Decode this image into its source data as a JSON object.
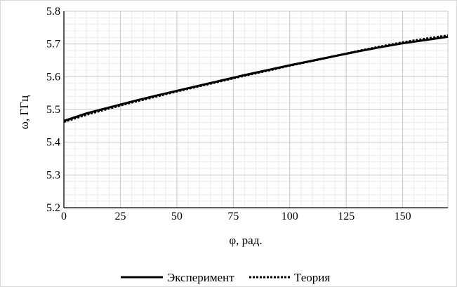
{
  "chart_data": {
    "type": "line",
    "xlabel": "φ, рад.",
    "ylabel": "ω, ГГц",
    "xlim": [
      0,
      170
    ],
    "ylim": [
      5.2,
      5.8
    ],
    "xticks": [
      0,
      25,
      50,
      75,
      100,
      125,
      150
    ],
    "yticks": [
      5.2,
      5.3,
      5.4,
      5.5,
      5.6,
      5.7,
      5.8
    ],
    "grid": true,
    "legend_position": "bottom",
    "series": [
      {
        "name": "Эксперимент",
        "style": "solid",
        "color": "#000000",
        "x": [
          0,
          10,
          20,
          30,
          40,
          50,
          60,
          70,
          80,
          90,
          100,
          110,
          120,
          130,
          140,
          150,
          160,
          170
        ],
        "y": [
          5.465,
          5.488,
          5.506,
          5.524,
          5.541,
          5.557,
          5.573,
          5.589,
          5.605,
          5.62,
          5.635,
          5.649,
          5.663,
          5.677,
          5.69,
          5.702,
          5.712,
          5.722
        ]
      },
      {
        "name": "Теория",
        "style": "dotted",
        "color": "#000000",
        "x": [
          0,
          10,
          20,
          30,
          40,
          50,
          60,
          70,
          80,
          90,
          100,
          110,
          120,
          130,
          140,
          150,
          160,
          170
        ],
        "y": [
          5.462,
          5.484,
          5.503,
          5.521,
          5.538,
          5.555,
          5.571,
          5.587,
          5.603,
          5.618,
          5.634,
          5.648,
          5.663,
          5.678,
          5.692,
          5.705,
          5.716,
          5.726
        ]
      }
    ]
  }
}
